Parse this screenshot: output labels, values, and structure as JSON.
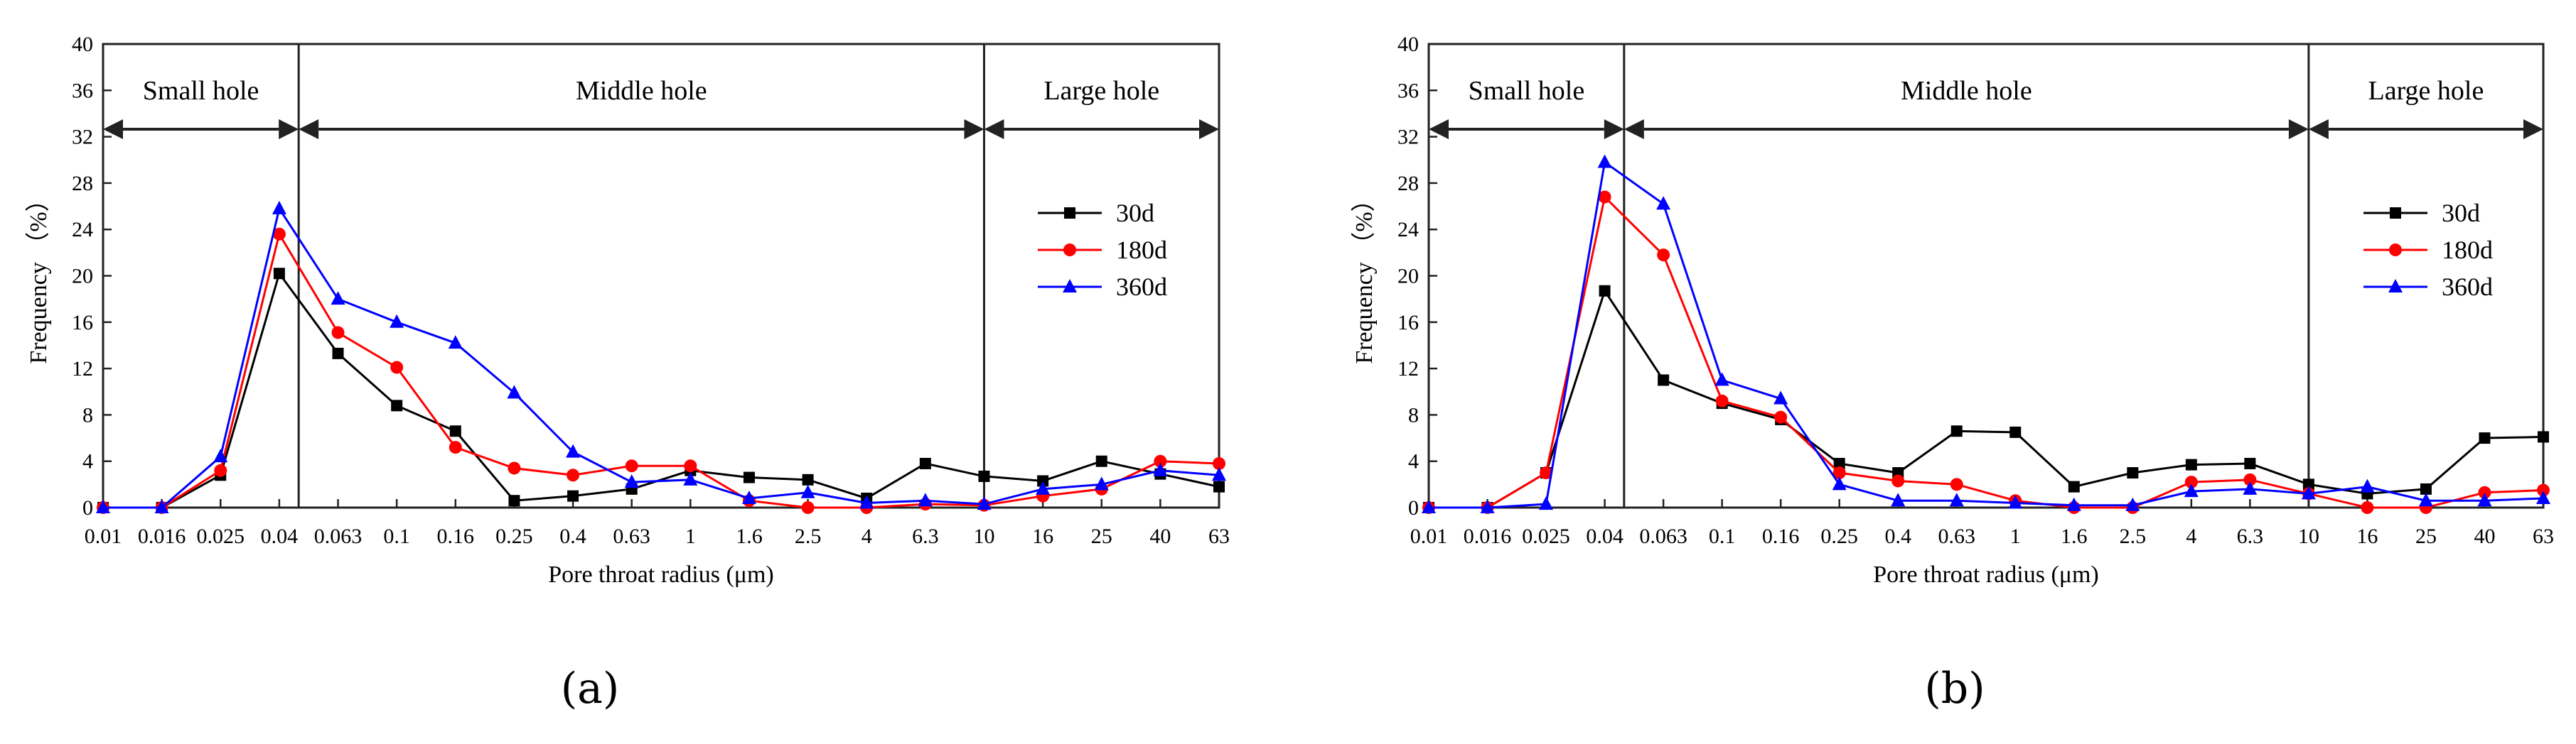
{
  "chart_data": [
    {
      "type": "line",
      "caption": "(a)",
      "xlabel": "Pore throat radius (μm)",
      "ylabel": "Frequency （%）",
      "ylim": [
        0,
        40
      ],
      "yticks": [
        "0",
        "4",
        "8",
        "12",
        "16",
        "20",
        "24",
        "28",
        "32",
        "36",
        "40"
      ],
      "categories": [
        "0.01",
        "0.016",
        "0.025",
        "0.04",
        "0.063",
        "0.1",
        "0.16",
        "0.25",
        "0.4",
        "0.63",
        "1",
        "1.6",
        "2.5",
        "4",
        "6.3",
        "10",
        "16",
        "25",
        "40",
        "63"
      ],
      "legend_position": "right",
      "regions": [
        {
          "label": "Small hole",
          "from": "0.01",
          "to": "0.05"
        },
        {
          "label": "Middle hole",
          "from": "0.05",
          "to": "10"
        },
        {
          "label": "Large hole",
          "from": "10",
          "to": "63"
        }
      ],
      "series": [
        {
          "name": "30d",
          "color": "#000000",
          "marker": "square",
          "values": [
            0,
            0,
            2.8,
            20.2,
            13.3,
            8.8,
            6.6,
            0.6,
            1.0,
            1.6,
            3.2,
            2.6,
            2.4,
            0.8,
            3.8,
            2.7,
            2.3,
            4.0,
            2.9,
            1.8
          ]
        },
        {
          "name": "180d",
          "color": "#ff0000",
          "marker": "circle",
          "values": [
            0,
            0,
            3.2,
            23.6,
            15.1,
            12.1,
            5.2,
            3.4,
            2.8,
            3.6,
            3.6,
            0.6,
            0,
            0,
            0.3,
            0.2,
            1.0,
            1.6,
            4.0,
            3.8
          ]
        },
        {
          "name": "360d",
          "color": "#0000ff",
          "marker": "triangle",
          "values": [
            0,
            0,
            4.4,
            25.8,
            18.0,
            16.0,
            14.2,
            9.9,
            4.8,
            2.2,
            2.4,
            0.8,
            1.3,
            0.4,
            0.6,
            0.3,
            1.6,
            2.0,
            3.2,
            2.8
          ]
        }
      ]
    },
    {
      "type": "line",
      "caption": "(b)",
      "xlabel": "Pore throat radius (μm)",
      "ylabel": "Frequency （%）",
      "ylim": [
        0,
        40
      ],
      "yticks": [
        "0",
        "4",
        "8",
        "12",
        "16",
        "20",
        "24",
        "28",
        "32",
        "36",
        "40"
      ],
      "categories": [
        "0.01",
        "0.016",
        "0.025",
        "0.04",
        "0.063",
        "0.1",
        "0.16",
        "0.25",
        "0.4",
        "0.63",
        "1",
        "1.6",
        "2.5",
        "4",
        "6.3",
        "10",
        "16",
        "25",
        "40",
        "63"
      ],
      "legend_position": "right",
      "regions": [
        {
          "label": "Small hole",
          "from": "0.01",
          "to": "0.05"
        },
        {
          "label": "Middle hole",
          "from": "0.05",
          "to": "10"
        },
        {
          "label": "Large hole",
          "from": "10",
          "to": "63"
        }
      ],
      "series": [
        {
          "name": "30d",
          "color": "#000000",
          "marker": "square",
          "values": [
            0,
            0,
            3.0,
            18.7,
            11.0,
            9.0,
            7.6,
            3.8,
            3.0,
            6.6,
            6.5,
            1.8,
            3.0,
            3.7,
            3.8,
            2.0,
            1.2,
            1.6,
            6.0,
            6.1
          ]
        },
        {
          "name": "180d",
          "color": "#ff0000",
          "marker": "circle",
          "values": [
            0,
            0,
            3.0,
            26.8,
            21.8,
            9.2,
            7.8,
            3.0,
            2.3,
            2.0,
            0.6,
            0,
            0,
            2.2,
            2.4,
            1.2,
            0,
            0,
            1.3,
            1.5
          ]
        },
        {
          "name": "360d",
          "color": "#0000ff",
          "marker": "triangle",
          "values": [
            0,
            0,
            0.3,
            29.8,
            26.2,
            11.0,
            9.4,
            2.0,
            0.6,
            0.6,
            0.4,
            0.2,
            0.2,
            1.4,
            1.6,
            1.2,
            1.8,
            0.6,
            0.6,
            0.8
          ]
        }
      ]
    }
  ]
}
